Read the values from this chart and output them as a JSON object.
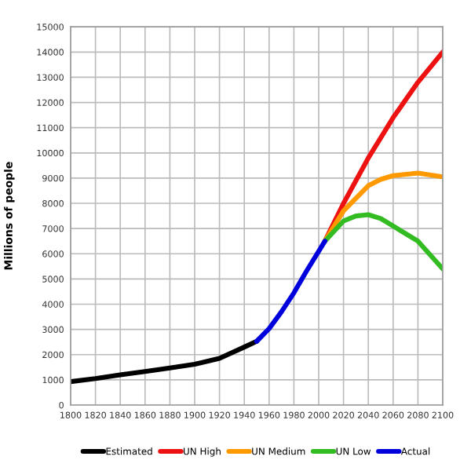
{
  "chart_data": {
    "type": "line",
    "ylabel": "Millions of people",
    "xlim": [
      1800,
      2100
    ],
    "xticks": [
      1800,
      1820,
      1840,
      1860,
      1880,
      1900,
      1920,
      1940,
      1960,
      1980,
      2000,
      2020,
      2040,
      2060,
      2080,
      2100
    ],
    "ylim": [
      0,
      15000
    ],
    "yticks": [
      0,
      1000,
      2000,
      3000,
      4000,
      5000,
      6000,
      7000,
      8000,
      9000,
      10000,
      11000,
      12000,
      13000,
      14000,
      15000
    ],
    "grid": true,
    "legend": "bottom",
    "marker": "none",
    "line_style": "solid",
    "series": [
      {
        "name": "Estimated",
        "color": "#000000",
        "x": [
          1800,
          1820,
          1840,
          1860,
          1880,
          1900,
          1920,
          1940,
          1950
        ],
        "values": [
          930,
          1050,
          1200,
          1330,
          1470,
          1620,
          1850,
          2300,
          2530
        ]
      },
      {
        "name": "UN High",
        "color": "#ee1111",
        "x": [
          2005,
          2020,
          2040,
          2050,
          2060,
          2080,
          2100
        ],
        "values": [
          6500,
          8000,
          9800,
          10600,
          11400,
          12800,
          14000
        ]
      },
      {
        "name": "UN Medium",
        "color": "#ff9900",
        "x": [
          2005,
          2020,
          2040,
          2050,
          2060,
          2080,
          2100
        ],
        "values": [
          6500,
          7700,
          8700,
          8950,
          9100,
          9200,
          9050
        ]
      },
      {
        "name": "UN Low",
        "color": "#33bb22",
        "x": [
          2005,
          2020,
          2030,
          2040,
          2050,
          2060,
          2080,
          2100
        ],
        "values": [
          6500,
          7300,
          7500,
          7550,
          7400,
          7100,
          6500,
          5400
        ]
      },
      {
        "name": "Actual",
        "color": "#0000dd",
        "x": [
          1950,
          1960,
          1970,
          1980,
          1990,
          2000,
          2005
        ],
        "values": [
          2530,
          3030,
          3700,
          4450,
          5300,
          6100,
          6500
        ]
      }
    ]
  }
}
